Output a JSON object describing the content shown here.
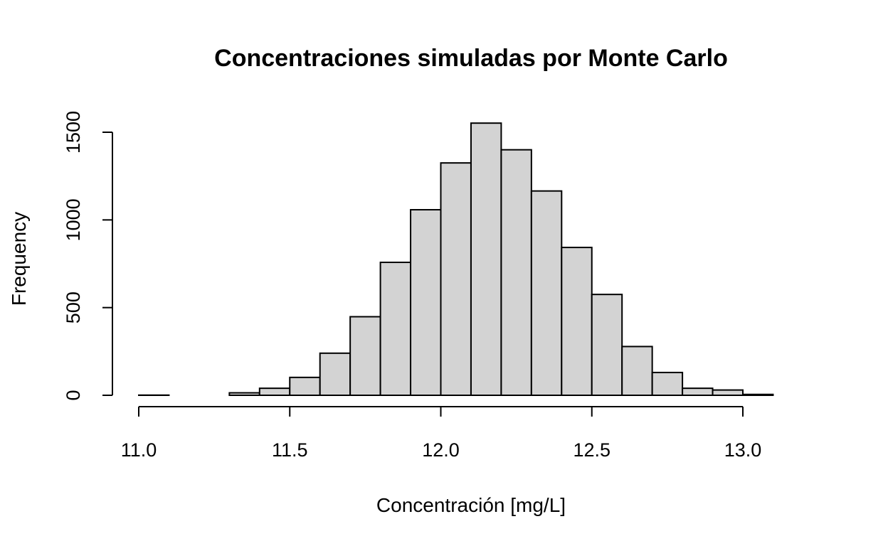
{
  "chart_data": {
    "type": "bar",
    "title": "Concentraciones simuladas por Monte Carlo",
    "xlabel": "Concentración [mg/L]",
    "ylabel": "Frequency",
    "bin_edges": [
      11.0,
      11.1,
      11.2,
      11.3,
      11.4,
      11.5,
      11.6,
      11.7,
      11.8,
      11.9,
      12.0,
      12.1,
      12.2,
      12.3,
      12.4,
      12.5,
      12.6,
      12.7,
      12.8,
      12.9,
      13.0,
      13.1
    ],
    "values": [
      1,
      0,
      0,
      14,
      40,
      102,
      240,
      448,
      758,
      1058,
      1325,
      1552,
      1400,
      1165,
      843,
      575,
      278,
      130,
      40,
      30,
      5
    ],
    "xlim": [
      11.0,
      13.2
    ],
    "ylim": [
      0,
      1500
    ],
    "x_ticks": [
      11.0,
      11.5,
      12.0,
      12.5,
      13.0
    ],
    "x_tick_labels": [
      "11.0",
      "11.5",
      "12.0",
      "12.5",
      "13.0"
    ],
    "y_ticks": [
      0,
      500,
      1000,
      1500
    ],
    "y_tick_labels": [
      "0",
      "500",
      "1000",
      "1500"
    ],
    "grid": false,
    "legend": "none"
  }
}
